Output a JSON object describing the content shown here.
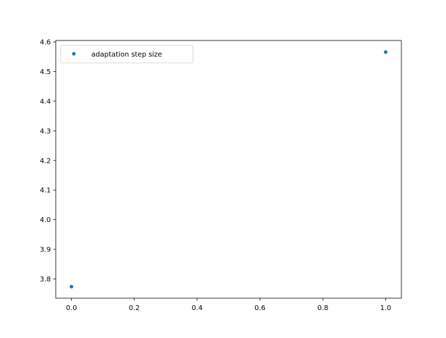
{
  "chart_data": {
    "type": "scatter",
    "title": "",
    "xlabel": "",
    "ylabel": "",
    "xlim": [
      -0.05,
      1.05
    ],
    "ylim": [
      3.735,
      4.605
    ],
    "xticks": [
      0.0,
      0.2,
      0.4,
      0.6,
      0.8,
      1.0
    ],
    "xtick_labels": [
      "0.0",
      "0.2",
      "0.4",
      "0.6",
      "0.8",
      "1.0"
    ],
    "yticks": [
      3.8,
      3.9,
      4.0,
      4.1,
      4.2,
      4.3,
      4.4,
      4.5,
      4.6
    ],
    "ytick_labels": [
      "3.8",
      "3.9",
      "4.0",
      "4.1",
      "4.2",
      "4.3",
      "4.4",
      "4.5",
      "4.6"
    ],
    "grid": false,
    "legend_position": "upper-left",
    "series": [
      {
        "name": "adaptation step size",
        "color": "#1f77b4",
        "points": [
          {
            "x": 0.0,
            "y": 3.774
          },
          {
            "x": 1.0,
            "y": 4.566
          }
        ]
      }
    ]
  }
}
